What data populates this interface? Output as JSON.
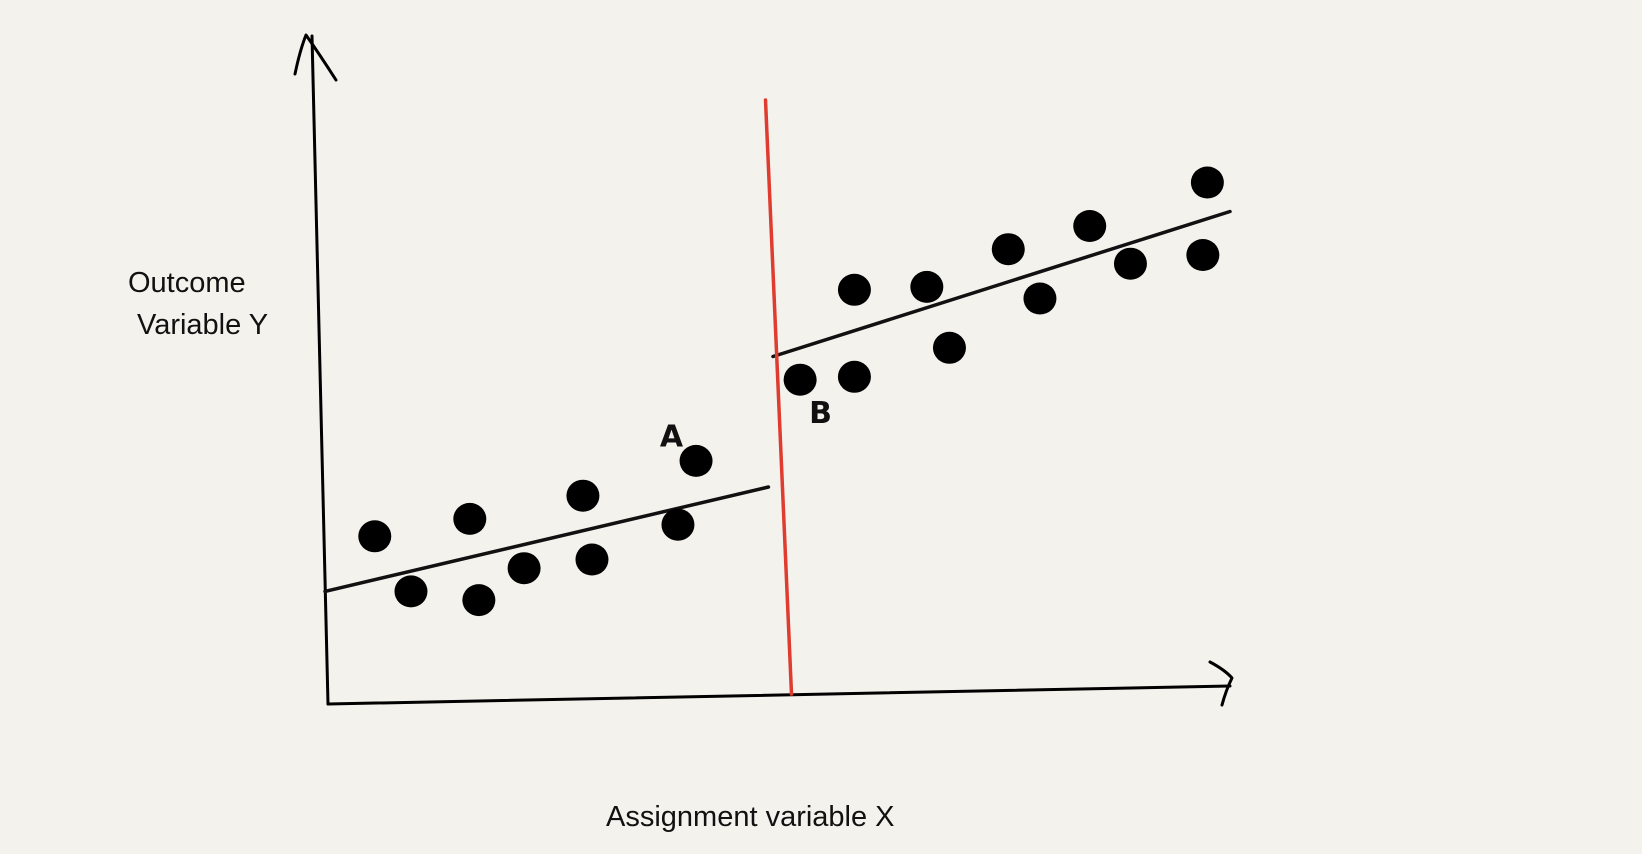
{
  "chart_data": {
    "type": "scatter",
    "title": "",
    "xlabel": "Assignment variable X",
    "ylabel_lines": [
      "Outcome",
      "Variable Y"
    ],
    "xlim": [
      0,
      10
    ],
    "ylim": [
      0,
      10
    ],
    "cutoff_x": 5.0,
    "series": [
      {
        "points": [
          {
            "x": 0.55,
            "y": 2.65
          },
          {
            "x": 0.95,
            "y": 1.7
          },
          {
            "x": 1.6,
            "y": 2.95
          },
          {
            "x": 1.7,
            "y": 1.55
          },
          {
            "x": 2.2,
            "y": 2.1
          },
          {
            "x": 2.85,
            "y": 3.35
          },
          {
            "x": 2.95,
            "y": 2.25
          },
          {
            "x": 3.9,
            "y": 2.85
          },
          {
            "x": 4.1,
            "y": 3.95
          }
        ],
        "fit": {
          "x": [
            0,
            4.9
          ],
          "y": [
            1.7,
            3.5
          ]
        }
      },
      {
        "points": [
          {
            "x": 5.25,
            "y": 5.35
          },
          {
            "x": 5.85,
            "y": 5.4
          },
          {
            "x": 5.85,
            "y": 6.9
          },
          {
            "x": 6.65,
            "y": 6.95
          },
          {
            "x": 6.9,
            "y": 5.9
          },
          {
            "x": 7.55,
            "y": 7.6
          },
          {
            "x": 7.9,
            "y": 6.75
          },
          {
            "x": 8.45,
            "y": 8.0
          },
          {
            "x": 8.9,
            "y": 7.35
          },
          {
            "x": 9.7,
            "y": 7.5
          },
          {
            "x": 9.75,
            "y": 8.75
          }
        ],
        "fit": {
          "x": [
            4.95,
            10.0
          ],
          "y": [
            5.75,
            8.25
          ]
        }
      }
    ],
    "annotations": [
      {
        "text": "A",
        "x": 3.7,
        "y": 4.2
      },
      {
        "text": "B",
        "x": 5.35,
        "y": 4.6
      }
    ],
    "colors": {
      "points": "#000000",
      "fit": "#111111",
      "cutoff": "#e03b2f",
      "axes": "#000000"
    }
  }
}
